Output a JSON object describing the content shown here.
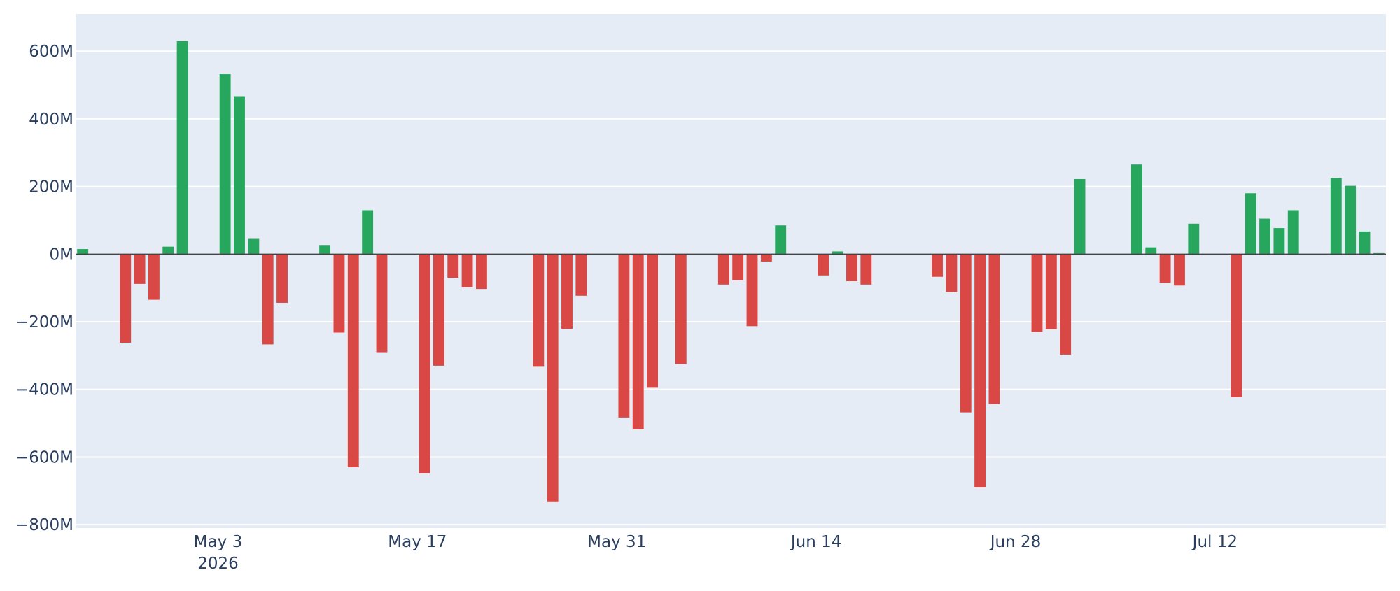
{
  "chart_data": {
    "type": "bar",
    "title": "",
    "xlabel": "",
    "ylabel": "",
    "ylim": [
      -810,
      710
    ],
    "yticks": [
      600,
      400,
      200,
      0,
      -200,
      -400,
      -600,
      -800
    ],
    "ytick_labels": [
      "600M",
      "400M",
      "200M",
      "0M",
      "−200M",
      "−400M",
      "−600M",
      "−800M"
    ],
    "xticks": [
      {
        "date": "2026-05-03",
        "label": "May 3",
        "sublabel": "2026"
      },
      {
        "date": "2026-05-17",
        "label": "May 17",
        "sublabel": ""
      },
      {
        "date": "2026-05-31",
        "label": "May 31",
        "sublabel": ""
      },
      {
        "date": "2026-06-14",
        "label": "Jun 14",
        "sublabel": ""
      },
      {
        "date": "2026-06-28",
        "label": "Jun 28",
        "sublabel": ""
      },
      {
        "date": "2026-07-12",
        "label": "Jul 12",
        "sublabel": ""
      }
    ],
    "xlim": [
      "2026-04-23",
      "2026-07-23"
    ],
    "positive_color": "#27a65e",
    "negative_color": "#d94844",
    "plot_bg": "#e5ecf6",
    "grid": true,
    "points": [
      {
        "x": "2026-04-23",
        "y": 15
      },
      {
        "x": "2026-04-26",
        "y": -262
      },
      {
        "x": "2026-04-27",
        "y": -88
      },
      {
        "x": "2026-04-28",
        "y": -135
      },
      {
        "x": "2026-04-29",
        "y": 22
      },
      {
        "x": "2026-04-30",
        "y": 630
      },
      {
        "x": "2026-05-03",
        "y": 532
      },
      {
        "x": "2026-05-04",
        "y": 467
      },
      {
        "x": "2026-05-05",
        "y": 45
      },
      {
        "x": "2026-05-06",
        "y": -267
      },
      {
        "x": "2026-05-07",
        "y": -144
      },
      {
        "x": "2026-05-10",
        "y": 25
      },
      {
        "x": "2026-05-11",
        "y": -232
      },
      {
        "x": "2026-05-12",
        "y": -630
      },
      {
        "x": "2026-05-13",
        "y": 130
      },
      {
        "x": "2026-05-14",
        "y": -290
      },
      {
        "x": "2026-05-17",
        "y": -648
      },
      {
        "x": "2026-05-18",
        "y": -330
      },
      {
        "x": "2026-05-19",
        "y": -70
      },
      {
        "x": "2026-05-20",
        "y": -98
      },
      {
        "x": "2026-05-21",
        "y": -103
      },
      {
        "x": "2026-05-25",
        "y": -333
      },
      {
        "x": "2026-05-26",
        "y": -733
      },
      {
        "x": "2026-05-27",
        "y": -221
      },
      {
        "x": "2026-05-28",
        "y": -123
      },
      {
        "x": "2026-05-31",
        "y": -483
      },
      {
        "x": "2026-06-01",
        "y": -518
      },
      {
        "x": "2026-06-02",
        "y": -395
      },
      {
        "x": "2026-06-04",
        "y": -325
      },
      {
        "x": "2026-06-07",
        "y": -90
      },
      {
        "x": "2026-06-08",
        "y": -77
      },
      {
        "x": "2026-06-09",
        "y": -213
      },
      {
        "x": "2026-06-10",
        "y": -22
      },
      {
        "x": "2026-06-11",
        "y": 85
      },
      {
        "x": "2026-06-14",
        "y": -63
      },
      {
        "x": "2026-06-15",
        "y": 8
      },
      {
        "x": "2026-06-16",
        "y": -80
      },
      {
        "x": "2026-06-17",
        "y": -90
      },
      {
        "x": "2026-06-22",
        "y": -67
      },
      {
        "x": "2026-06-23",
        "y": -112
      },
      {
        "x": "2026-06-24",
        "y": -468
      },
      {
        "x": "2026-06-25",
        "y": -690
      },
      {
        "x": "2026-06-26",
        "y": -443
      },
      {
        "x": "2026-06-29",
        "y": -230
      },
      {
        "x": "2026-06-30",
        "y": -222
      },
      {
        "x": "2026-07-01",
        "y": -297
      },
      {
        "x": "2026-07-02",
        "y": 222
      },
      {
        "x": "2026-07-06",
        "y": 265
      },
      {
        "x": "2026-07-07",
        "y": 20
      },
      {
        "x": "2026-07-08",
        "y": -85
      },
      {
        "x": "2026-07-09",
        "y": -93
      },
      {
        "x": "2026-07-10",
        "y": 90
      },
      {
        "x": "2026-07-13",
        "y": -423
      },
      {
        "x": "2026-07-14",
        "y": 180
      },
      {
        "x": "2026-07-15",
        "y": 105
      },
      {
        "x": "2026-07-16",
        "y": 77
      },
      {
        "x": "2026-07-17",
        "y": 130
      },
      {
        "x": "2026-07-20",
        "y": 225
      },
      {
        "x": "2026-07-21",
        "y": 202
      },
      {
        "x": "2026-07-22",
        "y": 67
      },
      {
        "x": "2026-07-23",
        "y": 3
      }
    ]
  }
}
